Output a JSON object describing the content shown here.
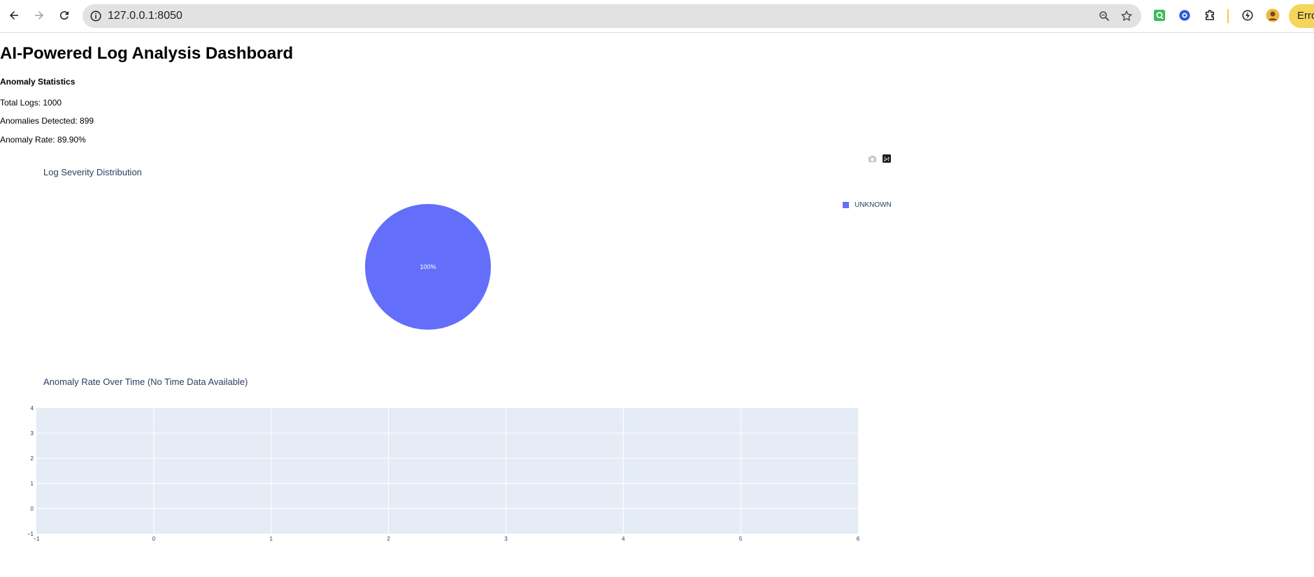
{
  "browser": {
    "url": "127.0.0.1:8050",
    "profile_label": "Erro"
  },
  "page": {
    "title": "AI-Powered Log Analysis Dashboard",
    "stats_heading": "Anomaly Statistics",
    "stats": [
      {
        "text": "Total Logs: 1000"
      },
      {
        "text": "Anomalies Detected: 899"
      },
      {
        "text": "Anomaly Rate: 89.90%"
      }
    ]
  },
  "chart_data": [
    {
      "type": "pie",
      "title": "Log Severity Distribution",
      "labels": [
        "UNKNOWN"
      ],
      "values": [
        100
      ],
      "text_labels": [
        "100%"
      ],
      "colors": [
        "#636efa"
      ],
      "legend": {
        "placement": "top-right",
        "entries": [
          "UNKNOWN"
        ]
      }
    },
    {
      "type": "line",
      "title": "Anomaly Rate Over Time (No Time Data Available)",
      "xlabel": "",
      "ylabel": "",
      "x": [],
      "y": [],
      "xlim": [
        -1,
        6
      ],
      "ylim": [
        -1,
        4
      ],
      "x_ticks": [
        "−1",
        "0",
        "1",
        "2",
        "3",
        "4",
        "5",
        "6"
      ],
      "y_ticks": [
        "4",
        "3",
        "2",
        "1",
        "0",
        "−1"
      ],
      "grid": true,
      "plot_bg": "#e5ecf6"
    }
  ]
}
